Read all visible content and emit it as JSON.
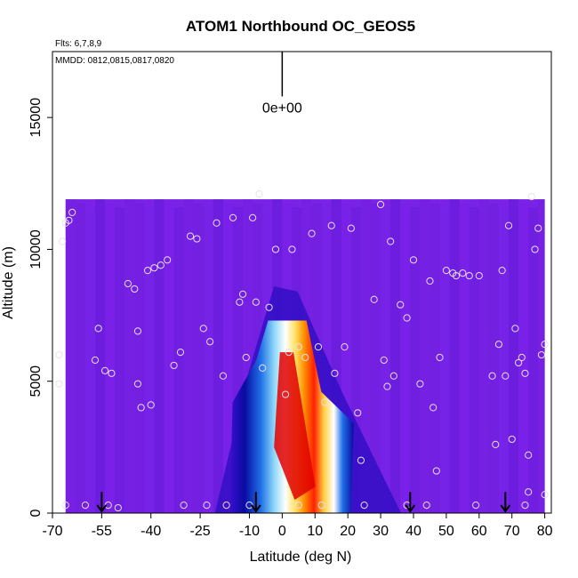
{
  "chart_data": {
    "type": "heatmap",
    "title": "ATOM1 Northbound OC_GEOS5",
    "notes": {
      "flights": "Flts: 6,7,8,9",
      "dates": "MMDD: 0812,0815,0817,0820"
    },
    "xlabel": "Latitude (deg N)",
    "ylabel": "Altitude (m)",
    "xlim": [
      -70,
      82
    ],
    "ylim": [
      0,
      17500
    ],
    "xticks": [
      -70,
      -55,
      -40,
      -25,
      -10,
      0,
      10,
      20,
      30,
      40,
      50,
      60,
      70,
      80
    ],
    "xtick_labels": [
      "-70",
      "-55",
      "-40",
      "-25",
      "-10",
      "0",
      "10",
      "20",
      "30",
      "40",
      "50",
      "60",
      "70",
      "80"
    ],
    "yticks": [
      0,
      5000,
      10000,
      15000
    ],
    "ytick_labels": [
      "0",
      "5000",
      "10000",
      "15000"
    ],
    "scale_label": "0e+00",
    "background_color": "#7a22e8",
    "curtain": {
      "lat_range": [
        -66,
        80
      ],
      "top_altitude": 11900,
      "plume": {
        "center_lat": 2,
        "peak_altitude": 3000,
        "top_altitude": 7300,
        "base_half_width_deg": 18
      }
    },
    "colorscale": [
      "#7a22e8",
      "#3a10d0",
      "#0a0aa0",
      "#1f6fe8",
      "#8fd8f8",
      "#ffffff",
      "#ffe060",
      "#ff9000",
      "#ff2000",
      "#b00000"
    ],
    "flight_points": [
      [
        -68,
        6000
      ],
      [
        -68,
        4900
      ],
      [
        -67,
        10300
      ],
      [
        -66,
        11000
      ],
      [
        -65,
        11100
      ],
      [
        -64,
        11400
      ],
      [
        -57,
        5800
      ],
      [
        -56,
        7000
      ],
      [
        -54,
        5400
      ],
      [
        -52,
        5300
      ],
      [
        -53,
        300
      ],
      [
        -50,
        200
      ],
      [
        -47,
        8700
      ],
      [
        -45,
        8500
      ],
      [
        -44,
        6900
      ],
      [
        -44,
        4900
      ],
      [
        -43,
        4000
      ],
      [
        -41,
        9200
      ],
      [
        -40,
        4100
      ],
      [
        -39,
        9300
      ],
      [
        -37,
        9400
      ],
      [
        -35,
        9600
      ],
      [
        -33,
        5600
      ],
      [
        -31,
        6100
      ],
      [
        -30,
        300
      ],
      [
        -28,
        10500
      ],
      [
        -26,
        10400
      ],
      [
        -24,
        7000
      ],
      [
        -22,
        6500
      ],
      [
        -20,
        11000
      ],
      [
        -18,
        5200
      ],
      [
        -17,
        300
      ],
      [
        -15,
        11200
      ],
      [
        -13,
        8000
      ],
      [
        -12,
        8300
      ],
      [
        -11,
        5900
      ],
      [
        -9,
        11200
      ],
      [
        -8,
        8000
      ],
      [
        -7,
        12100
      ],
      [
        -6,
        5500
      ],
      [
        -4,
        7800
      ],
      [
        -2,
        10000
      ],
      [
        1,
        4500
      ],
      [
        2,
        6100
      ],
      [
        3,
        10000
      ],
      [
        5,
        6300
      ],
      [
        7,
        5900
      ],
      [
        9,
        10600
      ],
      [
        11,
        6300
      ],
      [
        13,
        4200
      ],
      [
        15,
        10900
      ],
      [
        16,
        5300
      ],
      [
        19,
        6300
      ],
      [
        21,
        10800
      ],
      [
        23,
        3800
      ],
      [
        24,
        2000
      ],
      [
        25,
        300
      ],
      [
        28,
        8100
      ],
      [
        30,
        11700
      ],
      [
        31,
        5800
      ],
      [
        32,
        4800
      ],
      [
        33,
        10300
      ],
      [
        34,
        5200
      ],
      [
        36,
        7900
      ],
      [
        38,
        7400
      ],
      [
        40,
        9600
      ],
      [
        42,
        4900
      ],
      [
        44,
        300
      ],
      [
        45,
        8800
      ],
      [
        46,
        4000
      ],
      [
        47,
        1600
      ],
      [
        48,
        5900
      ],
      [
        50,
        9200
      ],
      [
        52,
        9100
      ],
      [
        53,
        9000
      ],
      [
        55,
        9100
      ],
      [
        57,
        9000
      ],
      [
        60,
        9000
      ],
      [
        64,
        5200
      ],
      [
        65,
        2600
      ],
      [
        66,
        6400
      ],
      [
        67,
        9200
      ],
      [
        68,
        5200
      ],
      [
        69,
        10900
      ],
      [
        70,
        2800
      ],
      [
        71,
        7000
      ],
      [
        72,
        5700
      ],
      [
        73,
        5900
      ],
      [
        74,
        300
      ],
      [
        74,
        5300
      ],
      [
        75,
        2200
      ],
      [
        75,
        800
      ],
      [
        76,
        12000
      ],
      [
        77,
        10000
      ],
      [
        78,
        10800
      ],
      [
        79,
        6000
      ],
      [
        80,
        6400
      ],
      [
        80,
        700
      ],
      [
        -23,
        300
      ],
      [
        -10,
        300
      ],
      [
        5,
        300
      ],
      [
        12,
        300
      ],
      [
        38,
        300
      ],
      [
        59,
        300
      ],
      [
        -60,
        300
      ],
      [
        -66,
        300
      ]
    ],
    "arrows_lat": [
      -55,
      -8,
      39,
      68
    ],
    "arrow_top_altitude": 800,
    "scale_bar": {
      "lat": 0,
      "bottom_altitude": 15800,
      "top_altitude": 17500
    }
  }
}
